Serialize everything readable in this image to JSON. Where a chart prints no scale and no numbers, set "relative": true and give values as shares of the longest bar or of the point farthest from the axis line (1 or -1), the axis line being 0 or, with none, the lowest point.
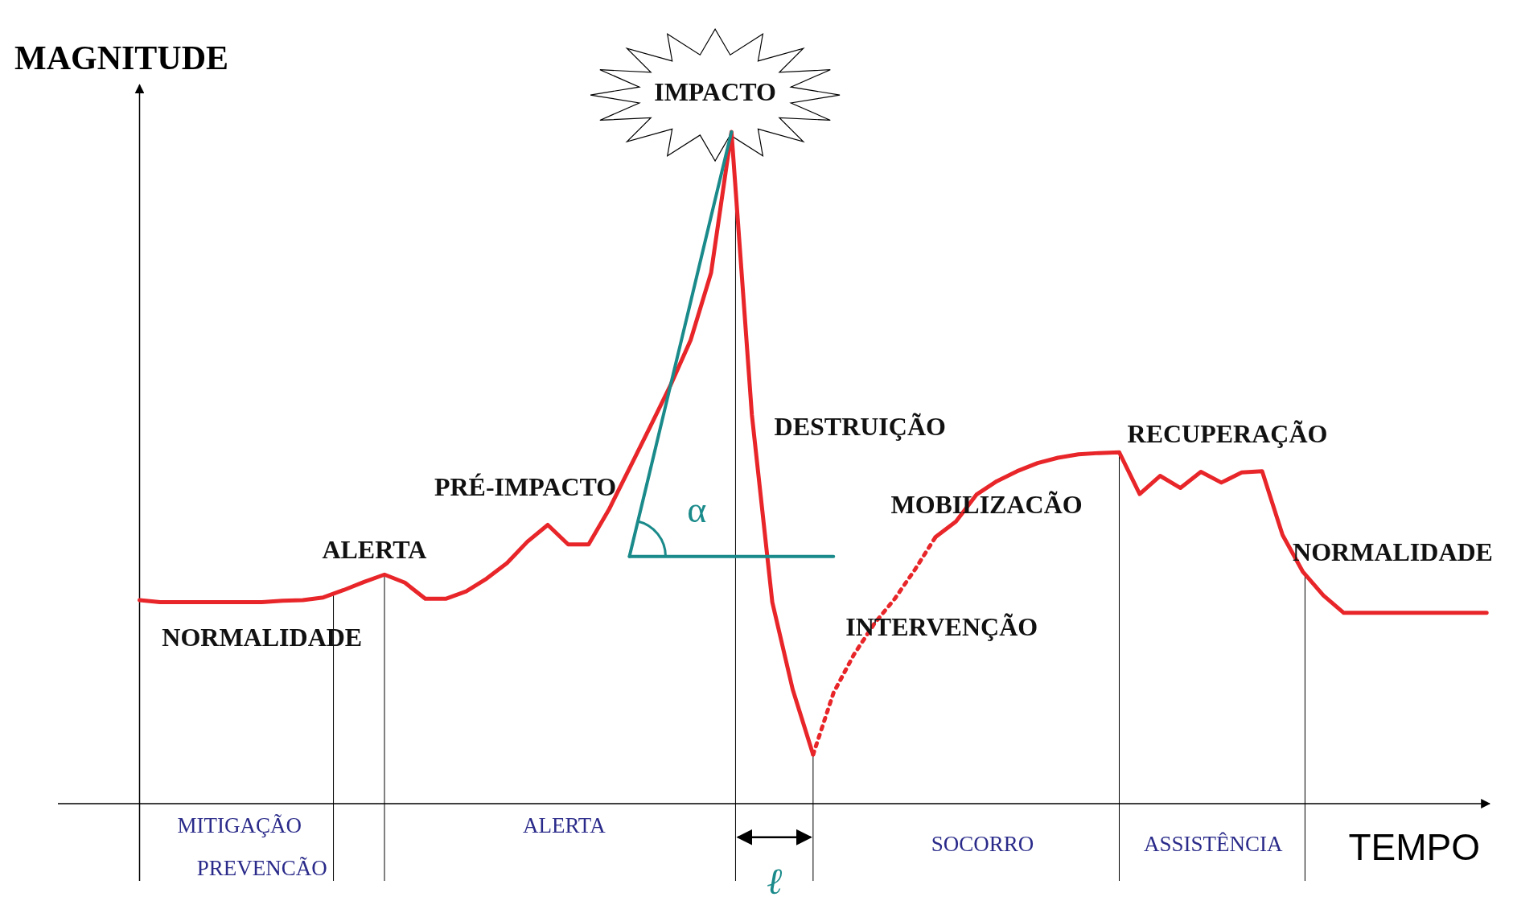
{
  "chart_data": {
    "type": "line",
    "relative": true,
    "xlabel": "TEMPO",
    "ylabel": "MAGNITUDE",
    "categories": [
      null,
      null,
      null,
      null,
      null,
      null,
      null,
      null,
      null,
      null,
      null,
      null,
      null,
      null,
      null,
      null,
      null,
      null,
      null,
      null,
      null,
      null,
      null,
      null,
      null,
      null,
      null,
      null,
      null,
      null,
      null,
      null,
      null,
      null,
      null,
      null,
      null,
      null,
      null,
      null,
      null,
      null,
      null,
      null,
      null,
      null,
      null,
      null,
      null,
      null,
      null,
      null,
      null,
      null,
      null,
      null,
      null,
      null,
      null,
      null,
      null,
      null,
      null,
      null,
      null,
      null,
      null
    ],
    "series": [
      {
        "color": "#e8262a",
        "line_style": "solid",
        "values": [
          0.303,
          0.3,
          0.3,
          0.3,
          0.3,
          0.3,
          0.3,
          0.302,
          0.303,
          0.307,
          0.318,
          0.33,
          0.341,
          0.329,
          0.305,
          0.305,
          0.316,
          0.335,
          0.358,
          0.39,
          0.415,
          0.386,
          0.386,
          0.438,
          0.499,
          0.56,
          0.622,
          0.69,
          0.79,
          1.0,
          0.579,
          0.3,
          0.17,
          0.073,
          null,
          null,
          null,
          null,
          null,
          null,
          null,
          null,
          null,
          null,
          null,
          null,
          null,
          null,
          null,
          null,
          null,
          null,
          null,
          null,
          null,
          null,
          null,
          null,
          null,
          null,
          null,
          null,
          null,
          null,
          null,
          null,
          null
        ]
      },
      {
        "color": "#e8262a",
        "line_style": "dotted",
        "values": [
          null,
          null,
          null,
          null,
          null,
          null,
          null,
          null,
          null,
          null,
          null,
          null,
          null,
          null,
          null,
          null,
          null,
          null,
          null,
          null,
          null,
          null,
          null,
          null,
          null,
          null,
          null,
          null,
          null,
          null,
          null,
          null,
          null,
          0.073,
          0.165,
          0.222,
          0.268,
          0.305,
          0.349,
          0.397,
          null,
          null,
          null,
          null,
          null,
          null,
          null,
          null,
          null,
          null,
          null,
          null,
          null,
          null,
          null,
          null,
          null,
          null,
          null,
          null,
          null,
          null,
          null,
          null,
          null,
          null,
          null
        ]
      },
      {
        "color": "#e8262a",
        "line_style": "solid",
        "values": [
          null,
          null,
          null,
          null,
          null,
          null,
          null,
          null,
          null,
          null,
          null,
          null,
          null,
          null,
          null,
          null,
          null,
          null,
          null,
          null,
          null,
          null,
          null,
          null,
          null,
          null,
          null,
          null,
          null,
          null,
          null,
          null,
          null,
          null,
          null,
          null,
          null,
          null,
          null,
          0.397,
          0.42,
          0.46,
          0.48,
          0.495,
          0.507,
          0.515,
          0.52,
          0.522,
          0.523,
          0.461,
          0.488,
          0.47,
          0.494,
          0.478,
          0.493,
          0.495,
          0.4,
          0.345,
          0.31,
          0.284,
          0.284,
          0.284,
          0.284,
          0.284,
          0.284,
          0.284,
          0.284
        ]
      },
      {
        "color": "#1a8a8a",
        "line_style": "solid",
        "values": [
          null,
          null,
          null,
          null,
          null,
          null,
          null,
          null,
          null,
          null,
          null,
          null,
          null,
          null,
          null,
          null,
          null,
          null,
          null,
          null,
          null,
          null,
          null,
          null,
          0.368,
          0.494,
          0.621,
          0.747,
          0.874,
          1.0,
          null,
          null,
          null,
          null,
          null,
          null,
          null,
          null,
          null,
          null,
          null,
          null,
          null,
          null,
          null,
          null,
          null,
          null,
          null,
          null,
          null,
          null,
          null,
          null,
          null,
          null,
          null,
          null,
          null,
          null,
          null,
          null,
          null,
          null,
          null,
          null,
          null
        ]
      },
      {
        "color": "#1a8a8a",
        "line_style": "solid",
        "values": [
          null,
          null,
          null,
          null,
          null,
          null,
          null,
          null,
          null,
          null,
          null,
          null,
          null,
          null,
          null,
          null,
          null,
          null,
          null,
          null,
          null,
          null,
          null,
          null,
          0.368,
          0.368,
          0.368,
          0.368,
          0.368,
          0.368,
          0.368,
          0.368,
          0.368,
          0.368,
          0.368,
          null,
          null,
          null,
          null,
          null,
          null,
          null,
          null,
          null,
          null,
          null,
          null,
          null,
          null,
          null,
          null,
          null,
          null,
          null,
          null,
          null,
          null,
          null,
          null,
          null,
          null,
          null,
          null,
          null,
          null,
          null,
          null
        ]
      }
    ],
    "annotations": [
      "IMPACTO",
      "DESTRUIÇÃO",
      "PRÉ-IMPACTO",
      "ALERTA",
      "NORMALIDADE",
      "MOBILIZACÃO",
      "INTERVENÇÃO",
      "RECUPERAÇÃO",
      "NORMALIDADE",
      "MITIGAÇÃO",
      "PREVENCÃO",
      "ALERTA",
      "SOCORRO",
      "ASSISTÊNCIA",
      "α",
      "ℓ"
    ]
  }
}
